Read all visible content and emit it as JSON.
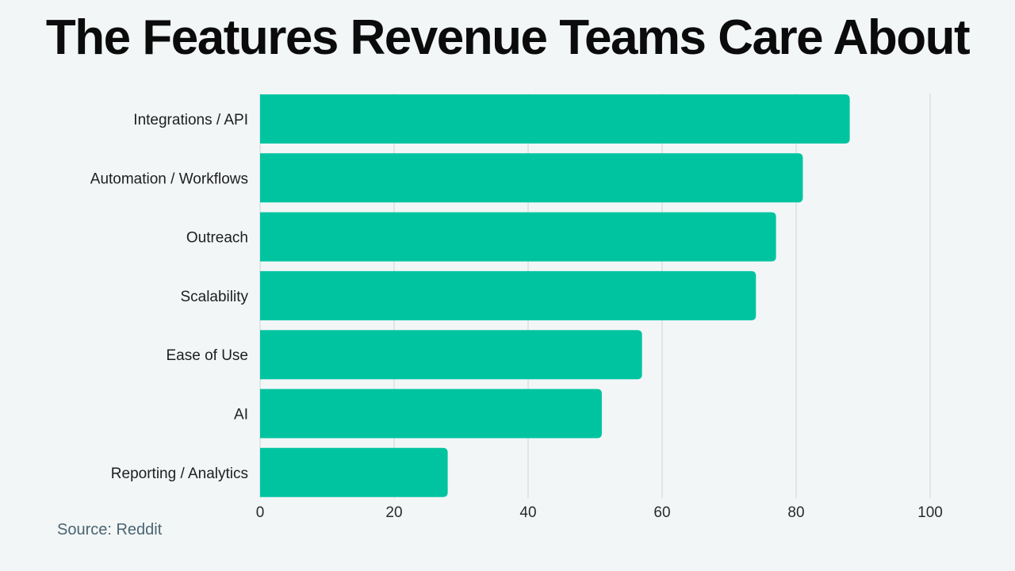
{
  "chart_data": {
    "type": "bar",
    "orientation": "horizontal",
    "title": "The Features Revenue Teams Care About",
    "categories": [
      "Integrations / API",
      "Automation / Workflows",
      "Outreach",
      "Scalability",
      "Ease of Use",
      "AI",
      "Reporting / Analytics"
    ],
    "values": [
      88,
      81,
      77,
      74,
      57,
      51,
      28
    ],
    "xlim": [
      0,
      100
    ],
    "xticks": [
      0,
      20,
      40,
      60,
      80,
      100
    ],
    "xlabel": "",
    "ylabel": "",
    "grid": true,
    "bar_color": "#00c4a0",
    "grid_color": "#cfd4d6"
  },
  "source": "Source: Reddit"
}
